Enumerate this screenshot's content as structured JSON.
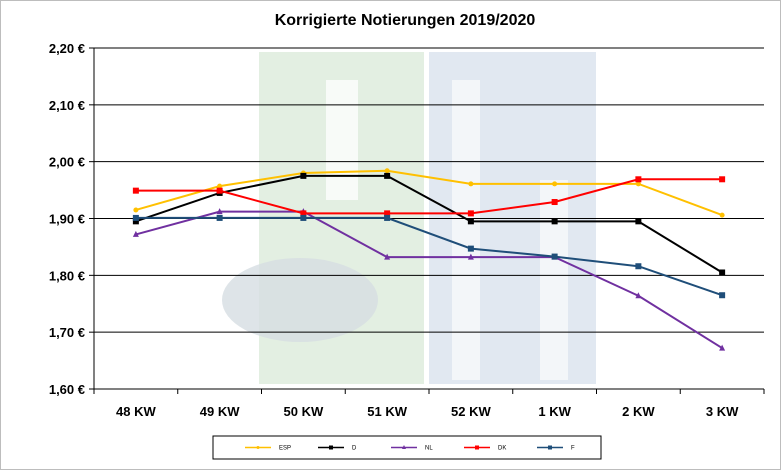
{
  "chart_data": {
    "type": "line",
    "title": "Korrigierte Notierungen 2019/2020",
    "xlabel": "",
    "ylabel": "",
    "categories": [
      "48 KW",
      "49 KW",
      "50 KW",
      "51 KW",
      "52 KW",
      "1 KW",
      "2 KW",
      "3 KW"
    ],
    "ylim": [
      1.6,
      2.2
    ],
    "yticks": [
      1.6,
      1.7,
      1.8,
      1.9,
      2.0,
      2.1,
      2.2
    ],
    "ytick_labels": [
      "1,60 €",
      "1,70 €",
      "1,80 €",
      "1,90 €",
      "2,00 €",
      "2,10 €",
      "2,20 €"
    ],
    "grid": "horizontal",
    "legend_position": "bottom",
    "series": [
      {
        "name": "ESP",
        "color": "#FFC000",
        "marker": "circle",
        "values": [
          1.915,
          1.957,
          1.98,
          1.984,
          1.961,
          1.961,
          1.961,
          1.906
        ]
      },
      {
        "name": "D",
        "color": "#000000",
        "marker": "square",
        "values": [
          1.895,
          1.945,
          1.975,
          1.975,
          1.895,
          1.895,
          1.895,
          1.805
        ]
      },
      {
        "name": "NL",
        "color": "#7030A0",
        "marker": "triangle",
        "values": [
          1.872,
          1.912,
          1.912,
          1.832,
          1.832,
          1.832,
          1.764,
          1.672
        ]
      },
      {
        "name": "DK",
        "color": "#FF0000",
        "marker": "square",
        "values": [
          1.949,
          1.949,
          1.909,
          1.909,
          1.909,
          1.929,
          1.969,
          1.969
        ]
      },
      {
        "name": "F",
        "color": "#1F4E79",
        "marker": "square",
        "values": [
          1.901,
          1.901,
          1.901,
          1.901,
          1.847,
          1.833,
          1.816,
          1.765
        ]
      }
    ]
  }
}
